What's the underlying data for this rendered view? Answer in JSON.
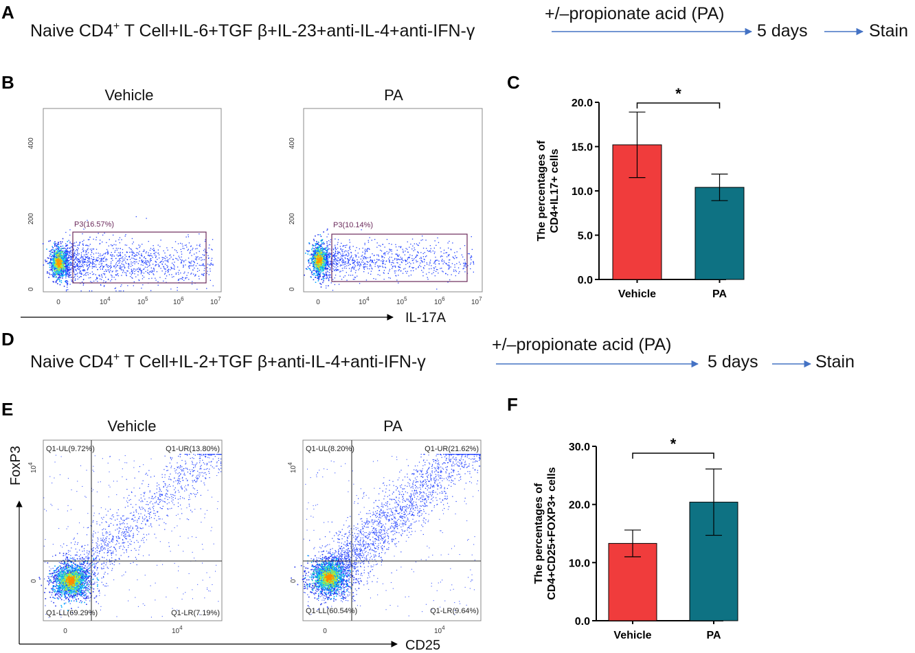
{
  "panels": {
    "A": {
      "label": "A",
      "condition_main": "Naive CD4",
      "condition_sup": "+",
      "condition_rest": " T Cell+IL-6+TGF β+IL-23+anti-IL-4+anti-IFN-γ",
      "treatment": "+/–propionate acid (PA)",
      "duration": "5 days",
      "endpoint": "Stain"
    },
    "B": {
      "label": "B",
      "plots": [
        {
          "title": "Vehicle",
          "gate": "P3(16.57%)"
        },
        {
          "title": "PA",
          "gate": "P3(10.14%)"
        }
      ],
      "x_axis_label": "IL-17A",
      "x_ticks": [
        "0",
        "10",
        "10",
        "10",
        "10"
      ],
      "x_tick_exps": [
        "",
        "4",
        "5",
        "6",
        "7"
      ],
      "y_ticks": [
        "0",
        "200",
        "400"
      ]
    },
    "C": {
      "label": "C"
    },
    "D": {
      "label": "D",
      "condition_main": "Naive CD4",
      "condition_sup": "+",
      "condition_rest": " T Cell+IL-2+TGF β+anti-IL-4+anti-IFN-γ",
      "treatment": "+/–propionate acid (PA)",
      "duration": "5 days",
      "endpoint": "Stain"
    },
    "E": {
      "label": "E",
      "plots": [
        {
          "title": "Vehicle",
          "ul": "Q1-UL(9.72%)",
          "ur": "Q1-UR(13.80%)",
          "ll": "Q1-LL(69.29%)",
          "lr": "Q1-LR(7.19%)"
        },
        {
          "title": "PA",
          "ul": "Q1-UL(8.20%)",
          "ur": "Q1-UR(21.62%)",
          "ll": "Q1-LL(60.54%)",
          "lr": "Q1-LR(9.64%)"
        }
      ],
      "x_axis_label": "CD25",
      "y_axis_label": "FoxP3",
      "tick_zero": "0",
      "tick_ten": "10",
      "tick_exp": "4"
    },
    "F": {
      "label": "F"
    }
  },
  "chart_data": [
    {
      "type": "bar",
      "panel": "C",
      "categories": [
        "Vehicle",
        "PA"
      ],
      "values": [
        15.2,
        10.4
      ],
      "error": [
        3.7,
        1.5
      ],
      "colors": [
        "#f03c3c",
        "#0e7283"
      ],
      "ylabel_line1": "The percentages of",
      "ylabel_line2": "CD4+IL17+ cells",
      "ylim": [
        0,
        20
      ],
      "yticks": [
        "0.0",
        "5.0",
        "10.0",
        "15.0",
        "20.0"
      ],
      "yticks_values": [
        0,
        5,
        10,
        15,
        20
      ],
      "significance": "*"
    },
    {
      "type": "bar",
      "panel": "F",
      "categories": [
        "Vehicle",
        "PA"
      ],
      "values": [
        13.3,
        20.4
      ],
      "error": [
        2.3,
        5.7
      ],
      "colors": [
        "#f03c3c",
        "#0e7283"
      ],
      "ylabel_line1": "The percentages of",
      "ylabel_line2": "CD4+CD25+FOXP3+ cells",
      "ylim": [
        0,
        30
      ],
      "yticks": [
        "0.0",
        "10.0",
        "20.0",
        "30.0"
      ],
      "yticks_values": [
        0,
        10,
        20,
        30
      ],
      "significance": "*"
    }
  ]
}
